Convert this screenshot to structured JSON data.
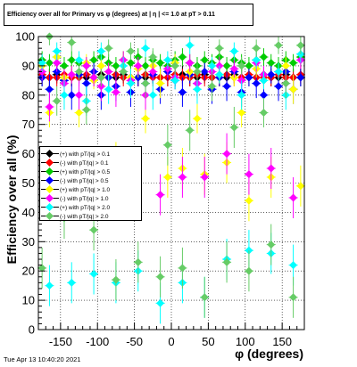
{
  "header": {
    "title": "Efficiency over all for Primary vs φ (degrees) at | η | <= 1.0 at pT > 0.11",
    "timestamp": "Tue Apr 13 10:40:20 2021"
  },
  "chart_data": {
    "type": "scatter",
    "title": "Efficiency over all for Primary vs φ (degrees) at | η | <= 1.0 at pT > 0.11",
    "xlabel": "φ (degrees)",
    "ylabel": "Efficiency over all (%)",
    "xlim": [
      -180,
      180
    ],
    "ylim": [
      0,
      100
    ],
    "xticks": [
      -150,
      -100,
      -50,
      0,
      50,
      100,
      150
    ],
    "yticks": [
      0,
      10,
      20,
      30,
      40,
      50,
      60,
      70,
      80,
      90,
      100
    ],
    "grid": true,
    "legend_position": "center-left",
    "series": [
      {
        "name": "(+) with pT/|q| > 0.1",
        "color": "#000000",
        "x": [
          -175,
          -165,
          -155,
          -145,
          -135,
          -125,
          -115,
          -105,
          -95,
          -85,
          -75,
          -65,
          -55,
          -45,
          -35,
          -25,
          -15,
          -5,
          5,
          15,
          25,
          35,
          45,
          55,
          65,
          75,
          85,
          95,
          105,
          115,
          125,
          135,
          145,
          155,
          165,
          175
        ],
        "y": [
          86,
          86,
          87,
          86,
          86,
          87,
          86,
          86,
          87,
          86,
          86,
          87,
          86,
          86,
          86,
          87,
          86,
          86,
          86,
          87,
          86,
          86,
          87,
          86,
          86,
          86,
          87,
          86,
          86,
          86,
          87,
          86,
          86,
          87,
          86,
          86
        ]
      },
      {
        "name": "(-) with pT/|q| > 0.1",
        "color": "#ff0000",
        "x": [
          -175,
          -165,
          -155,
          -145,
          -135,
          -125,
          -115,
          -105,
          -95,
          -85,
          -75,
          -65,
          -55,
          -45,
          -35,
          -25,
          -15,
          -5,
          5,
          15,
          25,
          35,
          45,
          55,
          65,
          75,
          85,
          95,
          105,
          115,
          125,
          135,
          145,
          155,
          165,
          175
        ],
        "y": [
          87,
          86,
          86,
          87,
          86,
          86,
          87,
          86,
          86,
          86,
          87,
          86,
          86,
          86,
          87,
          86,
          86,
          86,
          87,
          86,
          86,
          87,
          86,
          86,
          86,
          87,
          86,
          86,
          87,
          86,
          86,
          86,
          87,
          86,
          86,
          87
        ]
      },
      {
        "name": "(+) with pT/|q| > 0.5",
        "color": "#00cc00",
        "x": [
          -175,
          -165,
          -155,
          -145,
          -135,
          -125,
          -115,
          -105,
          -95,
          -85,
          -75,
          -65,
          -55,
          -45,
          -35,
          -25,
          -15,
          -5,
          5,
          15,
          25,
          35,
          45,
          55,
          65,
          75,
          85,
          95,
          105,
          115,
          125,
          135,
          145,
          155,
          165,
          175
        ],
        "y": [
          92,
          91,
          93,
          90,
          92,
          91,
          90,
          92,
          93,
          91,
          90,
          92,
          91,
          93,
          90,
          92,
          91,
          90,
          92,
          93,
          91,
          90,
          92,
          91,
          93,
          90,
          92,
          91,
          90,
          92,
          93,
          91,
          90,
          92,
          91,
          93
        ]
      },
      {
        "name": "(-) with pT/|q| > 0.5",
        "color": "#0000ff",
        "x": [
          -175,
          -165,
          -155,
          -145,
          -135,
          -125,
          -115,
          -105,
          -95,
          -85,
          -75,
          -65,
          -55,
          -45,
          -35,
          -25,
          -15,
          -5,
          5,
          15,
          25,
          35,
          45,
          55,
          65,
          75,
          85,
          95,
          105,
          115,
          125,
          135,
          145,
          155,
          165,
          175
        ],
        "y": [
          86,
          82,
          88,
          85,
          80,
          87,
          84,
          88,
          80,
          86,
          83,
          88,
          81,
          86,
          84,
          87,
          82,
          88,
          85,
          81,
          87,
          84,
          88,
          82,
          86,
          83,
          88,
          81,
          86,
          84,
          80,
          87,
          83,
          88,
          82,
          86
        ]
      },
      {
        "name": "(+) with pT/|q| > 1.0",
        "color": "#ffff00",
        "x": [
          -175,
          -165,
          -155,
          -145,
          -135,
          -125,
          -115,
          -105,
          -95,
          -85,
          -75,
          -65,
          -55,
          -45,
          -35,
          -25,
          -15,
          -5,
          5,
          15,
          25,
          35,
          45,
          55,
          65,
          75,
          85,
          95,
          105,
          115,
          125,
          135,
          145,
          155,
          165,
          175
        ],
        "y": [
          90,
          74,
          93,
          86,
          87,
          74,
          91,
          85,
          90,
          88,
          57,
          92,
          86,
          89,
          72,
          90,
          84,
          52,
          91,
          55,
          88,
          72,
          53,
          90,
          87,
          57,
          86,
          74,
          44,
          89,
          85,
          52,
          88,
          90,
          82,
          49
        ]
      },
      {
        "name": "(-) with pT/|q| > 1.0",
        "color": "#ff00ff",
        "x": [
          -175,
          -165,
          -155,
          -145,
          -135,
          -125,
          -115,
          -105,
          -95,
          -85,
          -75,
          -65,
          -55,
          -45,
          -35,
          -25,
          -15,
          -5,
          5,
          15,
          25,
          35,
          45,
          55,
          65,
          75,
          85,
          95,
          105,
          115,
          125,
          135,
          145,
          155,
          165,
          175
        ],
        "y": [
          88,
          76,
          91,
          84,
          87,
          80,
          90,
          86,
          83,
          88,
          81,
          92,
          85,
          90,
          80,
          88,
          46,
          89,
          86,
          52,
          91,
          84,
          52,
          88,
          90,
          60,
          89,
          85,
          53,
          91,
          87,
          55,
          88,
          84,
          45,
          92
        ]
      },
      {
        "name": "(+) with pT/|q| > 2.0",
        "color": "#00ffff",
        "x": [
          -175,
          -165,
          -155,
          -145,
          -135,
          -125,
          -115,
          -105,
          -95,
          -85,
          -75,
          -65,
          -55,
          -45,
          -35,
          -25,
          -15,
          -5,
          5,
          15,
          25,
          35,
          45,
          55,
          65,
          75,
          85,
          95,
          105,
          115,
          125,
          135,
          145,
          155,
          165,
          175
        ],
        "y": [
          91,
          15,
          95,
          80,
          16,
          92,
          78,
          19,
          95,
          82,
          16,
          90,
          84,
          20,
          96,
          80,
          9,
          92,
          85,
          16,
          97,
          82,
          11,
          90,
          87,
          24,
          95,
          80,
          27,
          92,
          85,
          26,
          88,
          80,
          22,
          94
        ]
      },
      {
        "name": "(-) with pT/|q| > 2.0",
        "color": "#66cc66",
        "x": [
          -175,
          -165,
          -155,
          -145,
          -135,
          -125,
          -115,
          -105,
          -95,
          -85,
          -75,
          -65,
          -55,
          -45,
          -35,
          -25,
          -15,
          -5,
          5,
          15,
          25,
          35,
          45,
          55,
          65,
          75,
          85,
          95,
          105,
          115,
          125,
          135,
          145,
          155,
          165,
          175
        ],
        "y": [
          21,
          100,
          78,
          38,
          98,
          88,
          75,
          34,
          86,
          96,
          17,
          88,
          95,
          23,
          84,
          93,
          18,
          63,
          90,
          21,
          68,
          88,
          11,
          83,
          96,
          23,
          69,
          90,
          20,
          96,
          74,
          29,
          97,
          84,
          11,
          97
        ]
      }
    ]
  }
}
